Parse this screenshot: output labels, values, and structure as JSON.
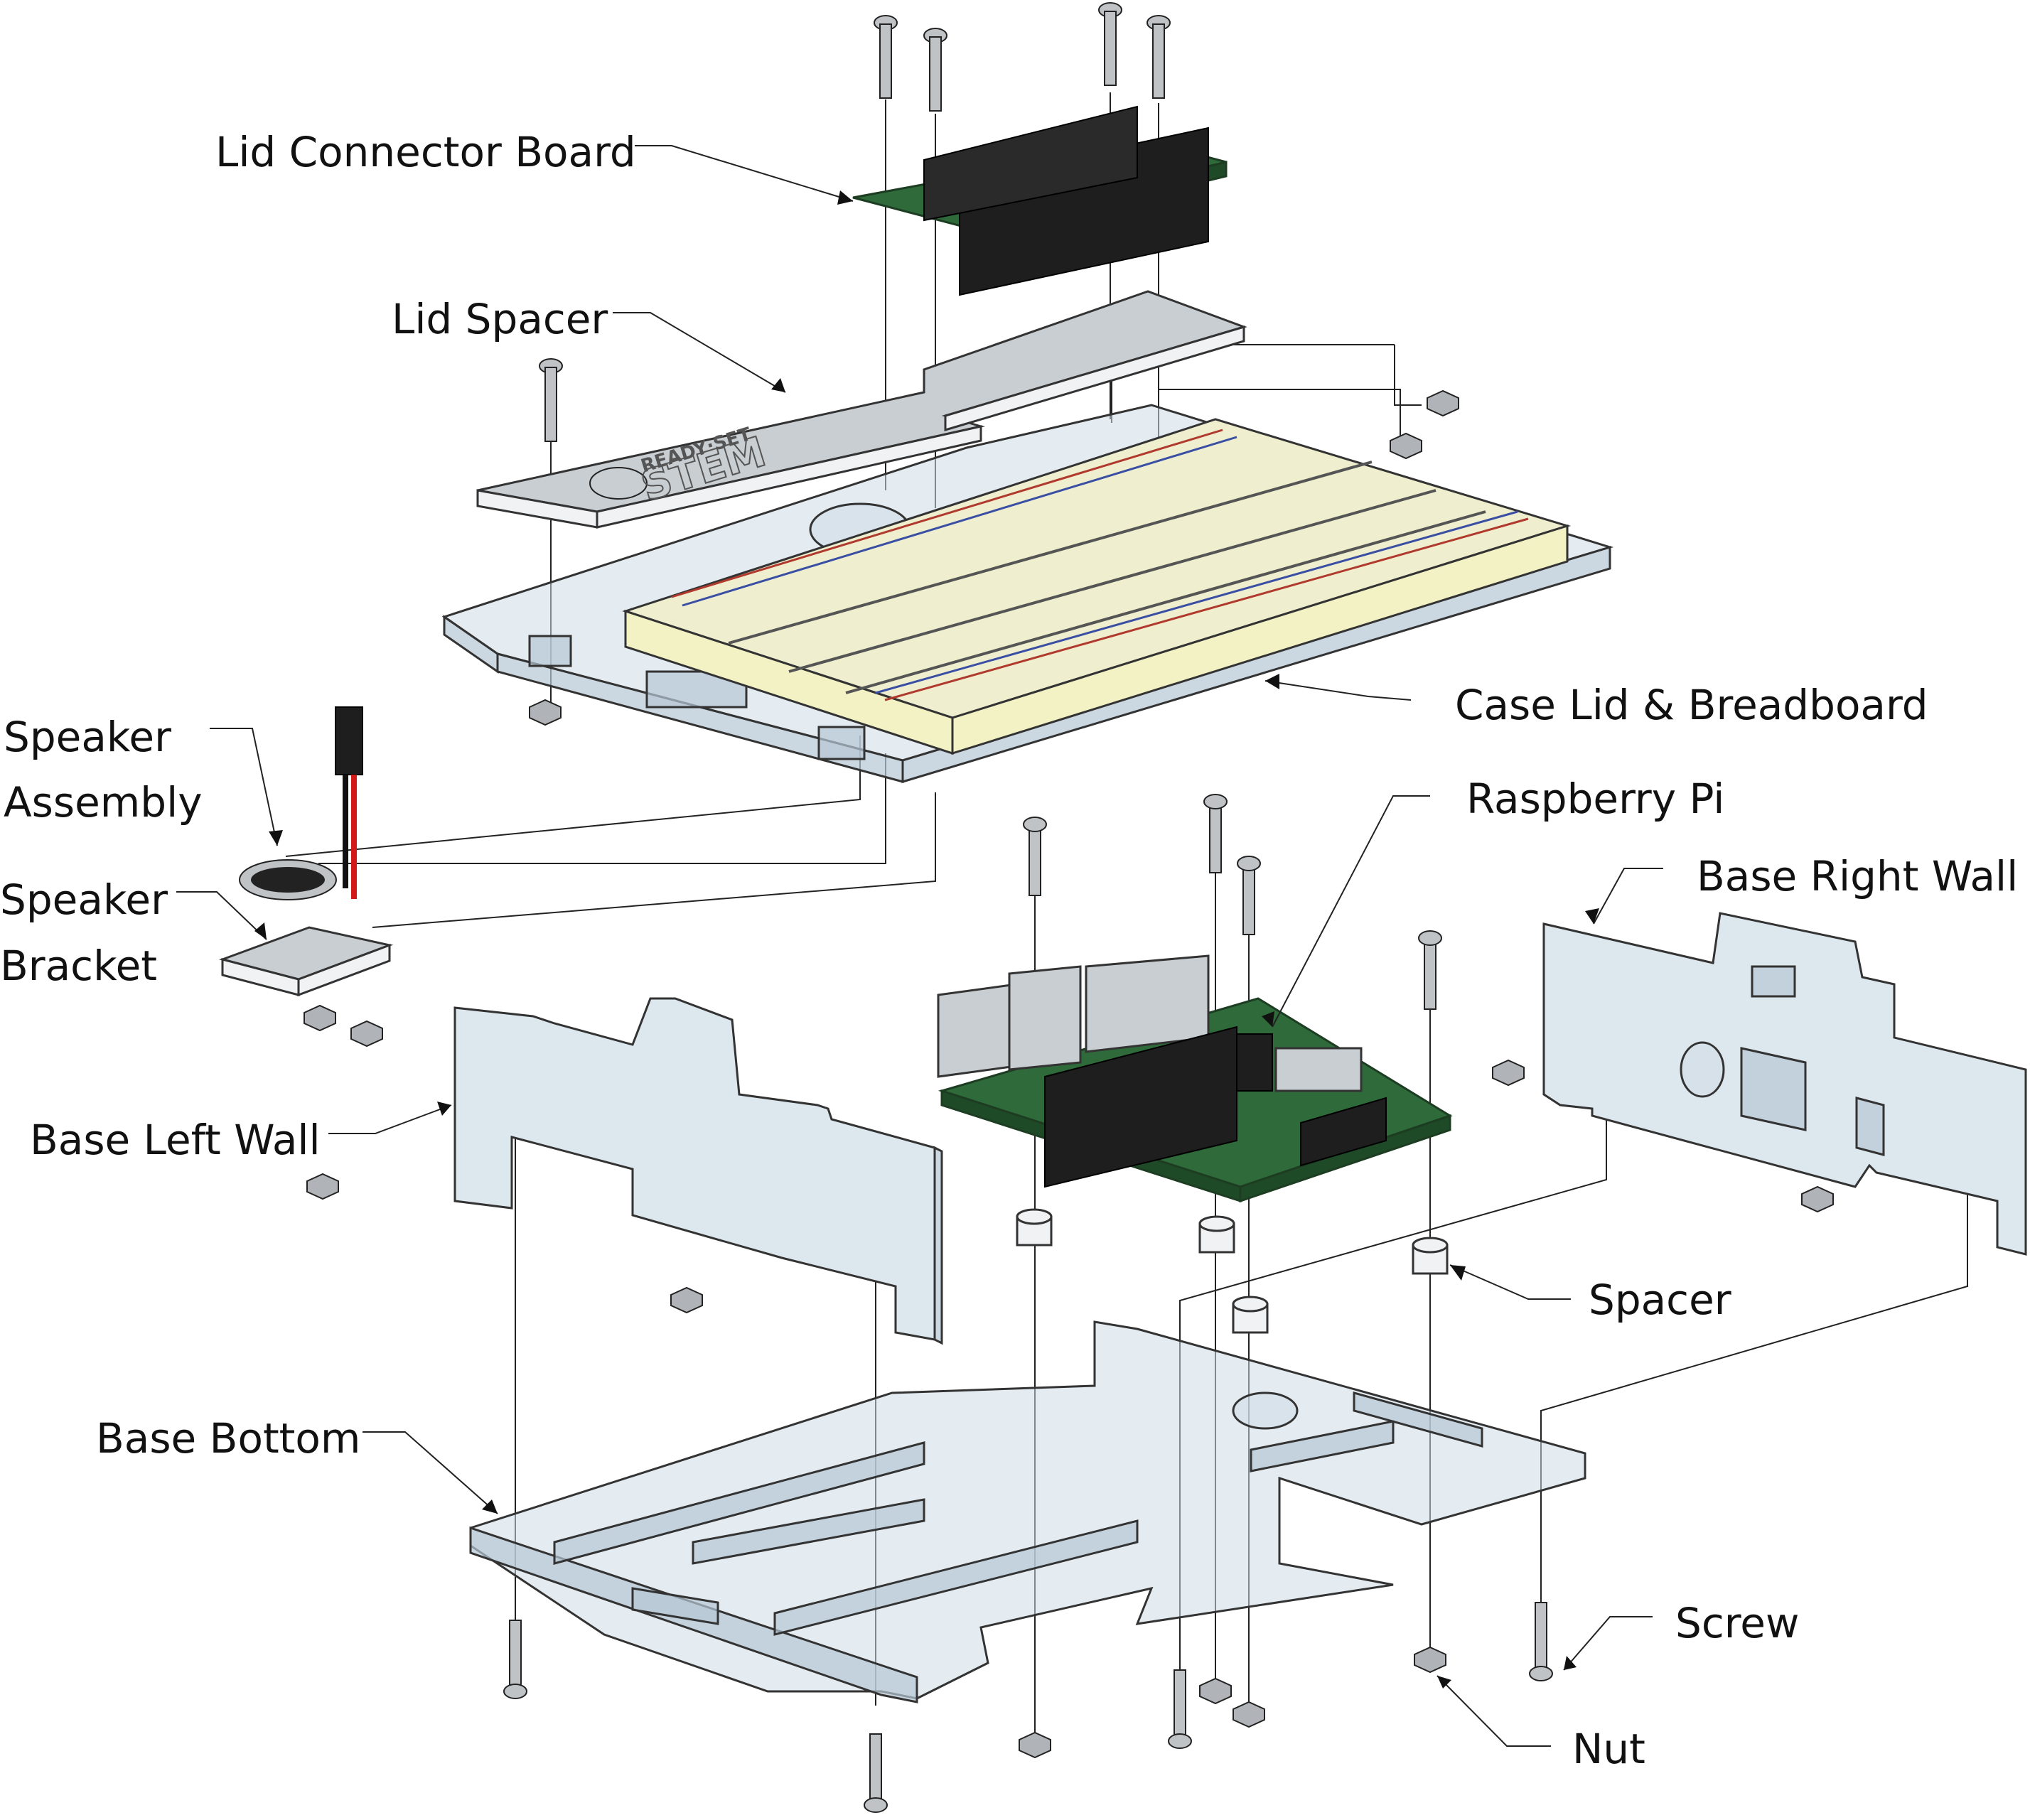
{
  "labels": {
    "lid_connector_board": "Lid Connector Board",
    "lid_spacer": "Lid Spacer",
    "case_lid_breadboard": "Case Lid & Breadboard",
    "speaker_assembly_line1": "Speaker",
    "speaker_assembly_line2": "Assembly",
    "speaker_bracket_line1": "Speaker",
    "speaker_bracket_line2": "Bracket",
    "raspberry_pi": "Raspberry Pi",
    "base_right_wall": "Base Right Wall",
    "base_left_wall": "Base Left Wall",
    "spacer": "Spacer",
    "base_bottom": "Base Bottom",
    "screw": "Screw",
    "nut": "Nut"
  },
  "engraving": {
    "brand_top": "READY·SET",
    "brand_main": "STEM"
  },
  "colors": {
    "acrylic": "#cfdce6",
    "pcb": "#2f6b3a",
    "breadboard": "#efefcf",
    "metal": "#c9ced2",
    "wire_red": "#d11a1a"
  }
}
